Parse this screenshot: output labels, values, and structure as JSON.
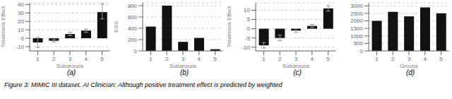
{
  "caption": "Figure 3: MIMIC III dataset.  AI Clinician: Although positive treatment effect is predicted by weighted",
  "chart_data": [
    {
      "type": "bar",
      "title": "(a)",
      "categories": [
        "1",
        "2",
        "3",
        "4",
        "5"
      ],
      "values": [
        -5,
        -3,
        5,
        9,
        31
      ],
      "yerr_low": [
        6,
        1.5,
        2,
        2,
        8
      ],
      "yerr_high": [
        6,
        1.5,
        2,
        2,
        10
      ],
      "xlabel": "Subgroups",
      "ylabel": "Treatment Effect",
      "ylim": [
        -15,
        42
      ],
      "yticks": [
        -10,
        0,
        10,
        20,
        30,
        40
      ],
      "color": "#111111",
      "grid": true
    },
    {
      "type": "bar",
      "title": "(b)",
      "categories": [
        "1",
        "2",
        "3",
        "4",
        "5"
      ],
      "values": [
        430,
        800,
        160,
        230,
        30
      ],
      "xlabel": "Subgroups",
      "ylabel": "ESS",
      "ylim": [
        0,
        850
      ],
      "yticks": [
        0,
        200,
        400,
        600,
        800
      ],
      "color": "#111111",
      "grid": true
    },
    {
      "type": "bar",
      "title": "(c)",
      "categories": [
        "1",
        "2",
        "3",
        "4",
        "5"
      ],
      "values": [
        -9,
        -5,
        -1,
        1.5,
        11
      ],
      "yerr_low": [
        1.5,
        1.5,
        1,
        0.8,
        1.5
      ],
      "yerr_high": [
        1.5,
        1.5,
        1,
        0.8,
        1.5
      ],
      "xlabel": "Subgroups",
      "ylabel": "Treatment Effect",
      "ylim": [
        -12,
        14
      ],
      "yticks": [
        -10,
        -5,
        0,
        5,
        10
      ],
      "color": "#111111",
      "grid": true
    },
    {
      "type": "bar",
      "title": "(d)",
      "categories": [
        "1",
        "2",
        "3",
        "4",
        "5"
      ],
      "values": [
        2000,
        2600,
        2300,
        2900,
        2500
      ],
      "xlabel": "Groups",
      "ylim": [
        0,
        3200
      ],
      "yticks": [
        0,
        500,
        1000,
        1500,
        2000,
        2500,
        3000
      ],
      "color": "#111111",
      "grid": true
    }
  ]
}
